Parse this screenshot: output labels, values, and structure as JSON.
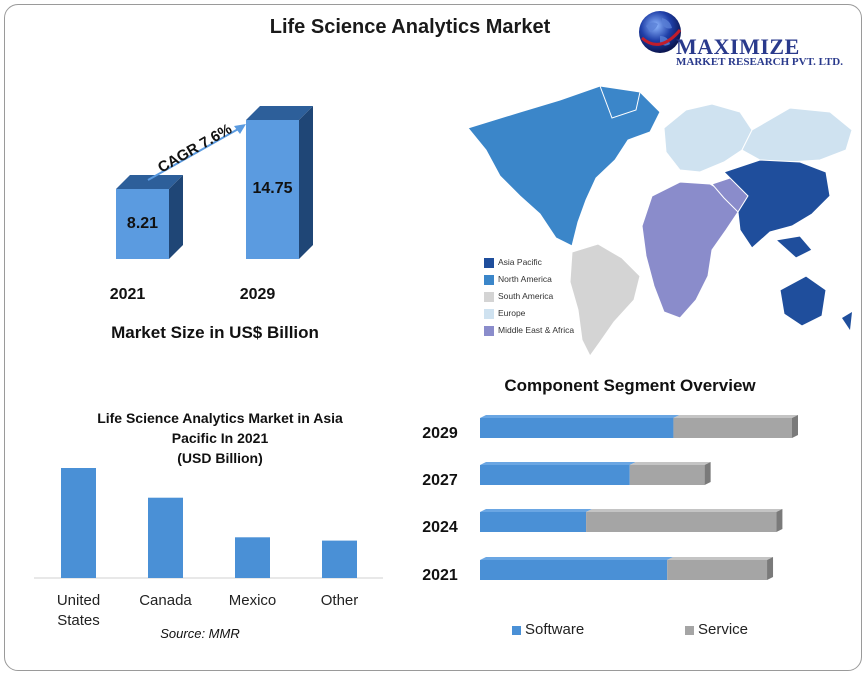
{
  "title": "Life Science Analytics Market",
  "logo": {
    "name": "MAXIMIZE",
    "sub": "MARKET RESEARCH PVT. LTD."
  },
  "market_size": {
    "caption": "Market Size in US$ Billion",
    "cagr": "CAGR 7.6%",
    "years": [
      "2021",
      "2029"
    ],
    "values": [
      "8.21",
      "14.75"
    ]
  },
  "map": {
    "legend": [
      {
        "label": "Asia Pacific",
        "color": "#1f4e9c"
      },
      {
        "label": "North America",
        "color": "#3b86c9"
      },
      {
        "label": "South America",
        "color": "#d4d4d4"
      },
      {
        "label": "Europe",
        "color": "#cfe2f0"
      },
      {
        "label": "Middle East & Africa",
        "color": "#8a8ccb"
      }
    ]
  },
  "apac": {
    "title_lines": [
      "Life Science Analytics Market in Asia",
      "Pacific In 2021",
      "(USD Billion)"
    ],
    "source": "Source: MMR"
  },
  "segment": {
    "title": "Component Segment Overview",
    "legend": [
      "Software",
      "Service"
    ]
  },
  "chart_data": [
    {
      "type": "bar",
      "title": "Market Size in US$ Billion",
      "categories": [
        "2021",
        "2029"
      ],
      "values": [
        8.21,
        14.75
      ],
      "annotation": "CAGR 7.6%"
    },
    {
      "type": "bar",
      "title": "Life Science Analytics Market in Asia Pacific In 2021 (USD Billion)",
      "categories": [
        "United States",
        "Canada",
        "Mexico",
        "Other"
      ],
      "values": [
        100,
        73,
        37,
        34
      ],
      "color": "#4a90d6"
    },
    {
      "type": "bar",
      "orientation": "horizontal",
      "stacked": true,
      "title": "Component Segment Overview",
      "categories": [
        "2029",
        "2027",
        "2024",
        "2021"
      ],
      "series": [
        {
          "name": "Software",
          "values": [
            62,
            48,
            34,
            60
          ],
          "color": "#4a90d6"
        },
        {
          "name": "Service",
          "values": [
            38,
            24,
            61,
            32
          ],
          "color": "#a5a5a5"
        }
      ]
    }
  ]
}
